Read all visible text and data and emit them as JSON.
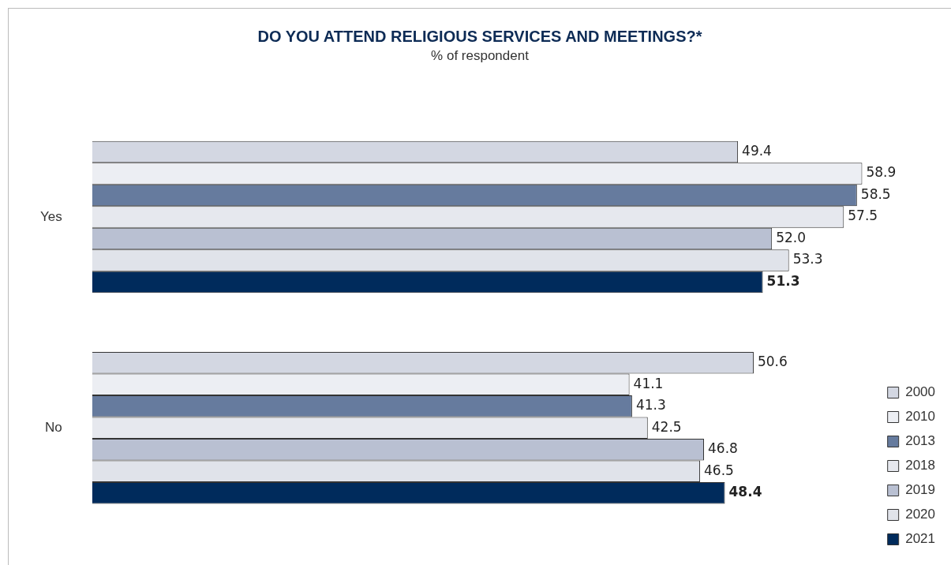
{
  "chart_data": {
    "type": "bar",
    "orientation": "horizontal",
    "title": "DO YOU ATTEND RELIGIOUS SERVICES AND MEETINGS?*",
    "subtitle": "% of respondent",
    "categories": [
      "Yes",
      "No"
    ],
    "legend": "bottom right",
    "tick_labels": "y",
    "series": [
      {
        "name": "2000",
        "color": "#d3d7e2",
        "values": [
          49.4,
          50.6
        ],
        "value_labels": [
          "49.4",
          "50.6"
        ]
      },
      {
        "name": "2010",
        "color": "#eceef3",
        "values": [
          58.9,
          41.1
        ],
        "value_labels": [
          "58.9",
          "41.1"
        ]
      },
      {
        "name": "2013",
        "color": "#667b9e",
        "values": [
          58.5,
          41.3
        ],
        "value_labels": [
          "58.5",
          "41.3"
        ]
      },
      {
        "name": "2018",
        "color": "#e6e8ee",
        "values": [
          57.5,
          42.5
        ],
        "value_labels": [
          "57.5",
          "42.5"
        ]
      },
      {
        "name": "2019",
        "color": "#b9c0d2",
        "values": [
          52.0,
          46.8
        ],
        "value_labels": [
          "52.0",
          "46.8"
        ]
      },
      {
        "name": "2020",
        "color": "#e0e3ea",
        "values": [
          53.3,
          46.5
        ],
        "value_labels": [
          "53.3",
          "46.5"
        ]
      },
      {
        "name": "2021",
        "color": "#002b5c",
        "values": [
          51.3,
          48.4
        ],
        "value_labels": [
          "51.3",
          "48.4"
        ]
      }
    ]
  }
}
